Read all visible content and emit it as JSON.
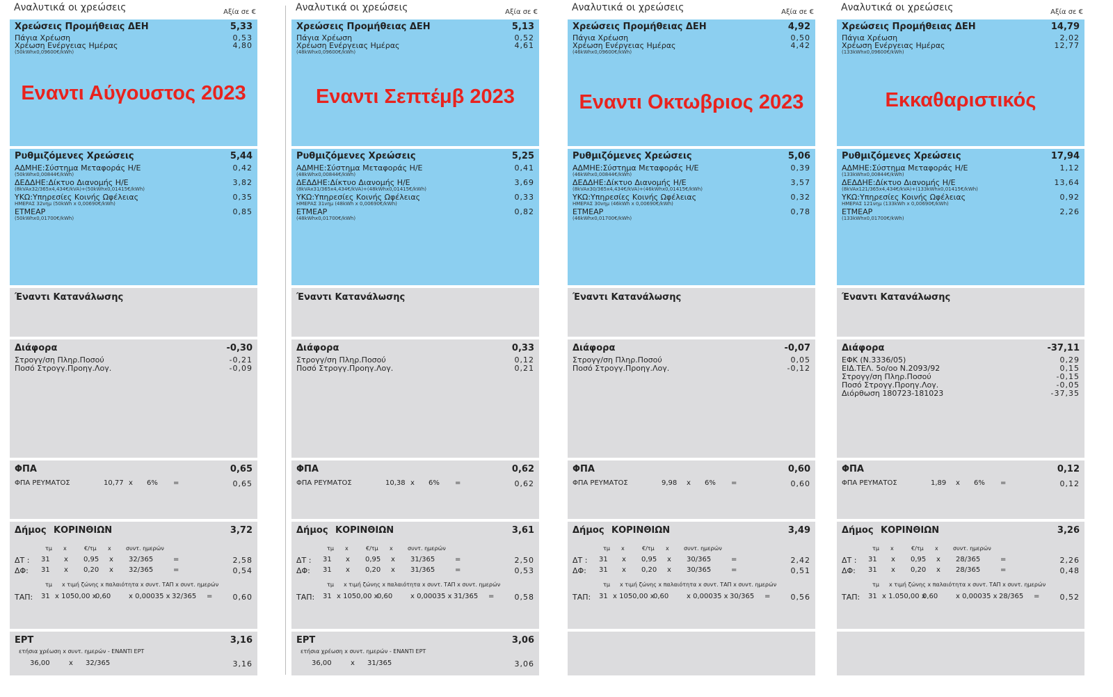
{
  "columns": [
    {
      "header": {
        "title": "Αναλυτικά οι χρεώσεις",
        "value_label": "Αξία σε €"
      },
      "supply": {
        "title": "Χρεώσεις Προμήθειας ΔΕΗ",
        "total": "5,33",
        "items": [
          {
            "label": "Πάγια Χρέωση",
            "value": "0,53"
          },
          {
            "label": "Χρέωση Ενέργειας Ημέρας",
            "value": "4,80",
            "sub": "(50kWhx0,09600€/kWh)"
          }
        ]
      },
      "overlay": "Εναντι  Αύγουστος 2023",
      "regulated": {
        "title": "Ρυθμιζόμενες Χρεώσεις",
        "total": "5,44",
        "items": [
          {
            "label": "ΑΔΜΗΕ:Σύστημα Μεταφοράς Η/Ε",
            "value": "0,42",
            "sub": "(50kWhx0,00844€/kWh)"
          },
          {
            "label": "ΔΕΔΔΗΕ:Δίκτυο Διανομής Η/Ε",
            "value": "3,82",
            "sub": "(8kVAx32/365x4,434€/kVA)+(50kWhx0,01415€/kWh)"
          },
          {
            "label": "ΥΚΩ:Υπηρεσίες Κοινής Ωφέλειας",
            "value": "0,35",
            "sub": "ΗΜΕΡΑΣ 32νημ (50kWh x 0,00690€/kWh)"
          },
          {
            "label": "ΕΤΜΕΑΡ",
            "value": "0,85",
            "sub": "(50kWhx0,01700€/kWh)"
          }
        ]
      },
      "consumption": {
        "title": "Έναντι Κατανάλωσης"
      },
      "difference": {
        "title": "Διάφορα",
        "total": "-0,30",
        "items": [
          {
            "label": "Στρογγ/ση Πληρ.Ποσού",
            "value": "-0,21"
          },
          {
            "label": "Ποσό Στρογγ.Προηγ.Λογ.",
            "value": "-0,09"
          }
        ]
      },
      "vat": {
        "title": "ΦΠΑ",
        "total": "0,65",
        "label": "ΦΠΑ ΡΕΥΜΑΤΟΣ",
        "base": "10,77",
        "x": "x",
        "rate": "6%",
        "eq": "=",
        "value": "0,65"
      },
      "municipality": {
        "title": "Δήμος",
        "name": "ΚΟΡΙΝΘΙΩΝ",
        "total": "3,72",
        "hdr1": {
          "a": "τμ",
          "b": "x",
          "c": "€/τμ",
          "d": "x",
          "e": "συντ. ημερών"
        },
        "rows": [
          {
            "label": "ΔΤ :",
            "a": "31",
            "b": "x",
            "c": "0,95",
            "d": "x",
            "e": "32/365",
            "f": "=",
            "value": "2,58"
          },
          {
            "label": "ΔΦ:",
            "a": "31",
            "b": "x",
            "c": "0,20",
            "d": "x",
            "e": "32/365",
            "f": "=",
            "value": "0,54"
          }
        ],
        "hdr2": {
          "a": "τμ",
          "b": "x τιμή ζώνης x παλαιότητα x συντ. ΤΑΠ x συντ. ημερών"
        },
        "tap": {
          "label": "ΤΑΠ:",
          "a": "31",
          "b": "x 1050,00 x",
          "c": "0,60",
          "d": "x 0,00035 x",
          "e": "32/365",
          "f": "=",
          "value": "0,60"
        }
      },
      "ert": {
        "title": "ΕΡΤ",
        "total": "3,16",
        "sub": "ετήσια χρέωση    x    συντ. ημερών   -    ΕΝΑΝΤΙ ΕΡΤ",
        "annual": "36,00",
        "x": "x",
        "days": "32/365",
        "value": "3,16"
      }
    },
    {
      "header": {
        "title": "Αναλυτικά οι χρεώσεις",
        "value_label": "Αξία σε €"
      },
      "supply": {
        "title": "Χρεώσεις Προμήθειας ΔΕΗ",
        "total": "5,13",
        "items": [
          {
            "label": "Πάγια Χρέωση",
            "value": "0,52"
          },
          {
            "label": "Χρέωση Ενέργειας Ημέρας",
            "value": "4,61",
            "sub": "(48kWhx0,09600€/kWh)"
          }
        ]
      },
      "overlay": "Εναντι  Σεπτέμβ 2023",
      "regulated": {
        "title": "Ρυθμιζόμενες Χρεώσεις",
        "total": "5,25",
        "items": [
          {
            "label": "ΑΔΜΗΕ:Σύστημα Μεταφοράς Η/Ε",
            "value": "0,41",
            "sub": "(48kWhx0,00844€/kWh)"
          },
          {
            "label": "ΔΕΔΔΗΕ:Δίκτυο Διανομής Η/Ε",
            "value": "3,69",
            "sub": "(8kVAx31/365x4,434€/kVA)+(48kWhx0,01415€/kWh)"
          },
          {
            "label": "ΥΚΩ:Υπηρεσίες Κοινής Ωφέλειας",
            "value": "0,33",
            "sub": "ΗΜΕΡΑΣ 31νημ (48kWh x 0,00690€/kWh)"
          },
          {
            "label": "ΕΤΜΕΑΡ",
            "value": "0,82",
            "sub": "(48kWhx0,01700€/kWh)"
          }
        ]
      },
      "consumption": {
        "title": "Έναντι Κατανάλωσης"
      },
      "difference": {
        "title": "Διάφορα",
        "total": "0,33",
        "items": [
          {
            "label": "Στρογγ/ση Πληρ.Ποσού",
            "value": "0,12"
          },
          {
            "label": "Ποσό Στρογγ.Προηγ.Λογ.",
            "value": "0,21"
          }
        ]
      },
      "vat": {
        "title": "ΦΠΑ",
        "total": "0,62",
        "label": "ΦΠΑ ΡΕΥΜΑΤΟΣ",
        "base": "10,38",
        "x": "x",
        "rate": "6%",
        "eq": "=",
        "value": "0,62"
      },
      "municipality": {
        "title": "Δήμος",
        "name": "ΚΟΡΙΝΘΙΩΝ",
        "total": "3,61",
        "hdr1": {
          "a": "τμ",
          "b": "x",
          "c": "€/τμ",
          "d": "x",
          "e": "συντ. ημερών"
        },
        "rows": [
          {
            "label": "ΔΤ :",
            "a": "31",
            "b": "x",
            "c": "0,95",
            "d": "x",
            "e": "31/365",
            "f": "=",
            "value": "2,50"
          },
          {
            "label": "ΔΦ:",
            "a": "31",
            "b": "x",
            "c": "0,20",
            "d": "x",
            "e": "31/365",
            "f": "=",
            "value": "0,53"
          }
        ],
        "hdr2": {
          "a": "τμ",
          "b": "x τιμή ζώνης x παλαιότητα x συντ. ΤΑΠ x συντ. ημερών"
        },
        "tap": {
          "label": "ΤΑΠ:",
          "a": "31",
          "b": "x 1050,00 x",
          "c": "0,60",
          "d": "x 0,00035 x",
          "e": "31/365",
          "f": "=",
          "value": "0,58"
        }
      },
      "ert": {
        "title": "ΕΡΤ",
        "total": "3,06",
        "sub": "ετήσια χρέωση    x    συντ. ημερών   -    ΕΝΑΝΤΙ ΕΡΤ",
        "annual": "36,00",
        "x": "x",
        "days": "31/365",
        "value": "3,06"
      }
    },
    {
      "header": {
        "title": "Αναλυτικά οι χρεώσεις",
        "value_label": "Αξία σε €"
      },
      "supply": {
        "title": "Χρεώσεις Προμήθειας ΔΕΗ",
        "total": "4,92",
        "items": [
          {
            "label": "Πάγια Χρέωση",
            "value": "0,50"
          },
          {
            "label": "Χρέωση Ενέργειας Ημέρας",
            "value": "4,42",
            "sub": "(46kWhx0,09600€/kWh)"
          }
        ]
      },
      "overlay": "Εναντι  Οκτωβριος 2023",
      "regulated": {
        "title": "Ρυθμιζόμενες Χρεώσεις",
        "total": "5,06",
        "items": [
          {
            "label": "ΑΔΜΗΕ:Σύστημα Μεταφοράς Η/Ε",
            "value": "0,39",
            "sub": "(46kWhx0,00844€/kWh)"
          },
          {
            "label": "ΔΕΔΔΗΕ:Δίκτυο Διανομής Η/Ε",
            "value": "3,57",
            "sub": "(8kVAx30/365x4,434€/kVA)+(46kWhx0,01415€/kWh)"
          },
          {
            "label": "ΥΚΩ:Υπηρεσίες Κοινής Ωφέλειας",
            "value": "0,32",
            "sub": "ΗΜΕΡΑΣ 30νημ (46kWh x 0,00690€/kWh)"
          },
          {
            "label": "ΕΤΜΕΑΡ",
            "value": "0,78",
            "sub": "(46kWhx0,01700€/kWh)"
          }
        ]
      },
      "consumption": {
        "title": "Έναντι Κατανάλωσης"
      },
      "difference": {
        "title": "Διάφορα",
        "total": "-0,07",
        "items": [
          {
            "label": "Στρογγ/ση Πληρ.Ποσού",
            "value": "0,05"
          },
          {
            "label": "Ποσό Στρογγ.Προηγ.Λογ.",
            "value": "-0,12"
          }
        ]
      },
      "vat": {
        "title": "ΦΠΑ",
        "total": "0,60",
        "label": "ΦΠΑ ΡΕΥΜΑΤΟΣ",
        "base": "9,98",
        "x": "x",
        "rate": "6%",
        "eq": "=",
        "value": "0,60"
      },
      "municipality": {
        "title": "Δήμος",
        "name": "ΚΟΡΙΝΘΙΩΝ",
        "total": "3,49",
        "hdr1": {
          "a": "τμ",
          "b": "x",
          "c": "€/τμ",
          "d": "x",
          "e": "συντ. ημερών"
        },
        "rows": [
          {
            "label": "ΔΤ :",
            "a": "31",
            "b": "x",
            "c": "0,95",
            "d": "x",
            "e": "30/365",
            "f": "=",
            "value": "2,42"
          },
          {
            "label": "ΔΦ:",
            "a": "31",
            "b": "x",
            "c": "0,20",
            "d": "x",
            "e": "30/365",
            "f": "=",
            "value": "0,51"
          }
        ],
        "hdr2": {
          "a": "τμ",
          "b": "x τιμή ζώνης x παλαιότητα x συντ. ΤΑΠ x συντ. ημερών"
        },
        "tap": {
          "label": "ΤΑΠ:",
          "a": "31",
          "b": "x 1050,00 x",
          "c": "0,60",
          "d": "x 0,00035 x",
          "e": "30/365",
          "f": "=",
          "value": "0,56"
        }
      }
    },
    {
      "header": {
        "title": "Αναλυτικά οι χρεώσεις",
        "value_label": "Αξία σε €"
      },
      "supply": {
        "title": "Χρεώσεις Προμήθειας ΔΕΗ",
        "total": "14,79",
        "items": [
          {
            "label": "Πάγια Χρέωση",
            "value": "2,02"
          },
          {
            "label": "Χρέωση Ενέργειας Ημέρας",
            "value": "12,77",
            "sub": "(133kWhx0,09600€/kWh)"
          }
        ]
      },
      "overlay": "Εκκαθαριστικός",
      "regulated": {
        "title": "Ρυθμιζόμενες Χρεώσεις",
        "total": "17,94",
        "items": [
          {
            "label": "ΑΔΜΗΕ:Σύστημα Μεταφοράς Η/Ε",
            "value": "1,12",
            "sub": "(133kWhx0,00844€/kWh)"
          },
          {
            "label": "ΔΕΔΔΗΕ:Δίκτυο Διανομής Η/Ε",
            "value": "13,64",
            "sub": "(8kVAx121/365x4,434€/kVA)+(133kWhx0,01415€/kWh)"
          },
          {
            "label": "ΥΚΩ:Υπηρεσίες Κοινής Ωφέλειας",
            "value": "0,92",
            "sub": "ΗΜΕΡΑΣ 121νημ (133kWh x 0,00690€/kWh)"
          },
          {
            "label": "ΕΤΜΕΑΡ",
            "value": "2,26",
            "sub": "(133kWhx0,01700€/kWh)"
          }
        ]
      },
      "consumption": {
        "title": "Έναντι Κατανάλωσης"
      },
      "difference": {
        "title": "Διάφορα",
        "total": "-37,11",
        "items": [
          {
            "label": "ΕΦΚ (Ν.3336/05)",
            "value": "0,29"
          },
          {
            "label": "ΕΙΔ.ΤΕΛ. 5ο/οο Ν.2093/92",
            "value": "0,15"
          },
          {
            "label": "Στρογγ/ση Πληρ.Ποσού",
            "value": "-0,15"
          },
          {
            "label": "Ποσό Στρογγ.Προηγ.Λογ.",
            "value": "-0,05"
          },
          {
            "label": "Διόρθωση 180723-181023",
            "value": "-37,35"
          }
        ]
      },
      "vat": {
        "title": "ΦΠΑ",
        "total": "0,12",
        "label": "ΦΠΑ ΡΕΥΜΑΤΟΣ",
        "base": "1,89",
        "x": "x",
        "rate": "6%",
        "eq": "=",
        "value": "0,12"
      },
      "municipality": {
        "title": "Δήμος",
        "name": "ΚΟΡΙΝΘΙΩΝ",
        "total": "3,26",
        "hdr1": {
          "a": "τμ",
          "b": "x",
          "c": "€/τμ",
          "d": "x",
          "e": "συντ. ημερών"
        },
        "rows": [
          {
            "label": "ΔΤ :",
            "a": "31",
            "b": "x",
            "c": "0,95",
            "d": "x",
            "e": "28/365",
            "f": "=",
            "value": "2,26"
          },
          {
            "label": "ΔΦ:",
            "a": "31",
            "b": "x",
            "c": "0,20",
            "d": "x",
            "e": "28/365",
            "f": "=",
            "value": "0,48"
          }
        ],
        "hdr2": {
          "a": "τμ",
          "b": "x τιμή ζώνης x παλαιότητα x συντ. ΤΑΠ x συντ. ημερών"
        },
        "tap": {
          "label": "ΤΑΠ:",
          "a": "31",
          "b": "x 1.050,00 x",
          "c": "0,60",
          "d": "x 0,00035 x",
          "e": "28/365",
          "f": "=",
          "value": "0,52"
        }
      }
    }
  ],
  "colors": {
    "blue": "#8ccff0",
    "gray": "#dcdcde",
    "overlay_red": "#e8231e"
  }
}
